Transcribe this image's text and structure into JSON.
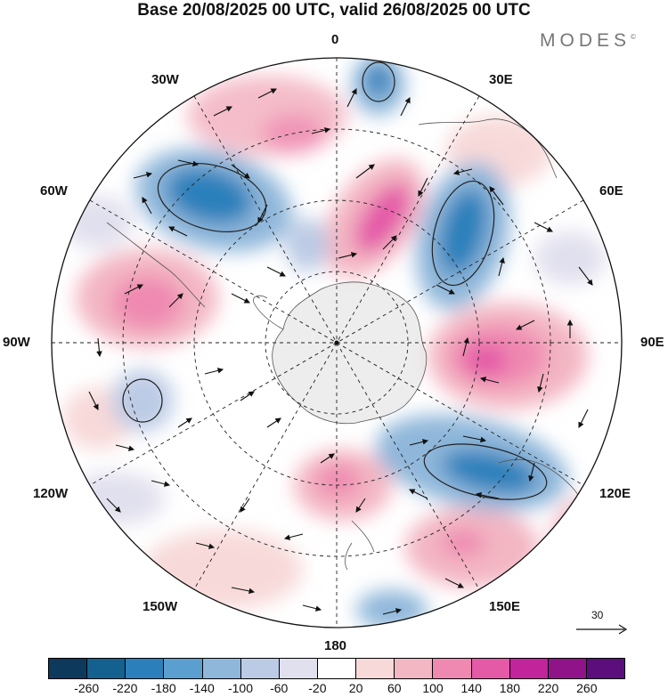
{
  "title": "Base 20/08/2025 00 UTC, valid 26/08/2025 00 UTC",
  "logo": {
    "text": "MODES",
    "mark": "©"
  },
  "labels": {
    "lon_0": "0",
    "lon_30e": "30E",
    "lon_60e": "60E",
    "lon_90e": "90E",
    "lon_120e": "120E",
    "lon_150e": "150E",
    "lon_180": "180",
    "lon_150w": "150W",
    "lon_120w": "120W",
    "lon_90w": "90W",
    "lon_60w": "60W",
    "lon_30w": "30W"
  },
  "vector_scale": {
    "value": "30"
  },
  "colorbar": {
    "colors": [
      "#0d3a5c",
      "#14618f",
      "#2b80bb",
      "#5a9fcf",
      "#8fb7da",
      "#bccbe5",
      "#e1e0ee",
      "#ffffff",
      "#f8d9d9",
      "#f3b6c3",
      "#ef89b1",
      "#e45aa7",
      "#c2249b",
      "#91138a",
      "#5b0e7c"
    ],
    "ticks": [
      "-260",
      "-220",
      "-180",
      "-140",
      "-100",
      "-60",
      "-20",
      "20",
      "60",
      "100",
      "140",
      "180",
      "220",
      "260"
    ]
  }
}
